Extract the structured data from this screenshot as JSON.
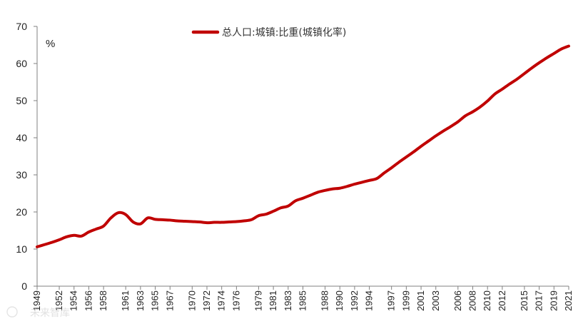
{
  "chart_data": {
    "type": "line",
    "ylabel": "%",
    "ylim": [
      0,
      70
    ],
    "yticks": [
      0,
      10,
      20,
      30,
      40,
      50,
      60,
      70
    ],
    "xlim": [
      1949,
      2021
    ],
    "xticks": [
      1949,
      1952,
      1954,
      1956,
      1958,
      1961,
      1963,
      1965,
      1967,
      1970,
      1972,
      1974,
      1976,
      1979,
      1981,
      1983,
      1985,
      1988,
      1990,
      1992,
      1994,
      1997,
      1999,
      2001,
      2003,
      2006,
      2008,
      2010,
      2012,
      2015,
      2017,
      2019,
      2021
    ],
    "grid": false,
    "legend_position": "top-center",
    "series": [
      {
        "name": "总人口:城镇:比重(城镇化率)",
        "color": "#c00000",
        "x": [
          1949,
          1950,
          1951,
          1952,
          1953,
          1954,
          1955,
          1956,
          1957,
          1958,
          1959,
          1960,
          1961,
          1962,
          1963,
          1964,
          1965,
          1966,
          1967,
          1968,
          1969,
          1970,
          1971,
          1972,
          1973,
          1974,
          1975,
          1976,
          1977,
          1978,
          1979,
          1980,
          1981,
          1982,
          1983,
          1984,
          1985,
          1986,
          1987,
          1988,
          1989,
          1990,
          1991,
          1992,
          1993,
          1994,
          1995,
          1996,
          1997,
          1998,
          1999,
          2000,
          2001,
          2002,
          2003,
          2004,
          2005,
          2006,
          2007,
          2008,
          2009,
          2010,
          2011,
          2012,
          2013,
          2014,
          2015,
          2016,
          2017,
          2018,
          2019,
          2020,
          2021
        ],
        "values": [
          10.6,
          11.2,
          11.8,
          12.5,
          13.3,
          13.7,
          13.5,
          14.6,
          15.4,
          16.2,
          18.4,
          19.8,
          19.3,
          17.3,
          16.8,
          18.4,
          18.0,
          17.9,
          17.8,
          17.6,
          17.5,
          17.4,
          17.3,
          17.1,
          17.2,
          17.2,
          17.3,
          17.4,
          17.6,
          17.9,
          19.0,
          19.4,
          20.2,
          21.1,
          21.6,
          23.0,
          23.7,
          24.5,
          25.3,
          25.8,
          26.2,
          26.4,
          26.9,
          27.5,
          28.0,
          28.5,
          29.0,
          30.5,
          31.9,
          33.4,
          34.8,
          36.2,
          37.7,
          39.1,
          40.5,
          41.8,
          43.0,
          44.3,
          45.9,
          47.0,
          48.3,
          49.9,
          51.8,
          53.1,
          54.5,
          55.8,
          57.3,
          58.8,
          60.2,
          61.5,
          62.7,
          63.9,
          64.7
        ]
      }
    ]
  },
  "watermark": "未来智库"
}
